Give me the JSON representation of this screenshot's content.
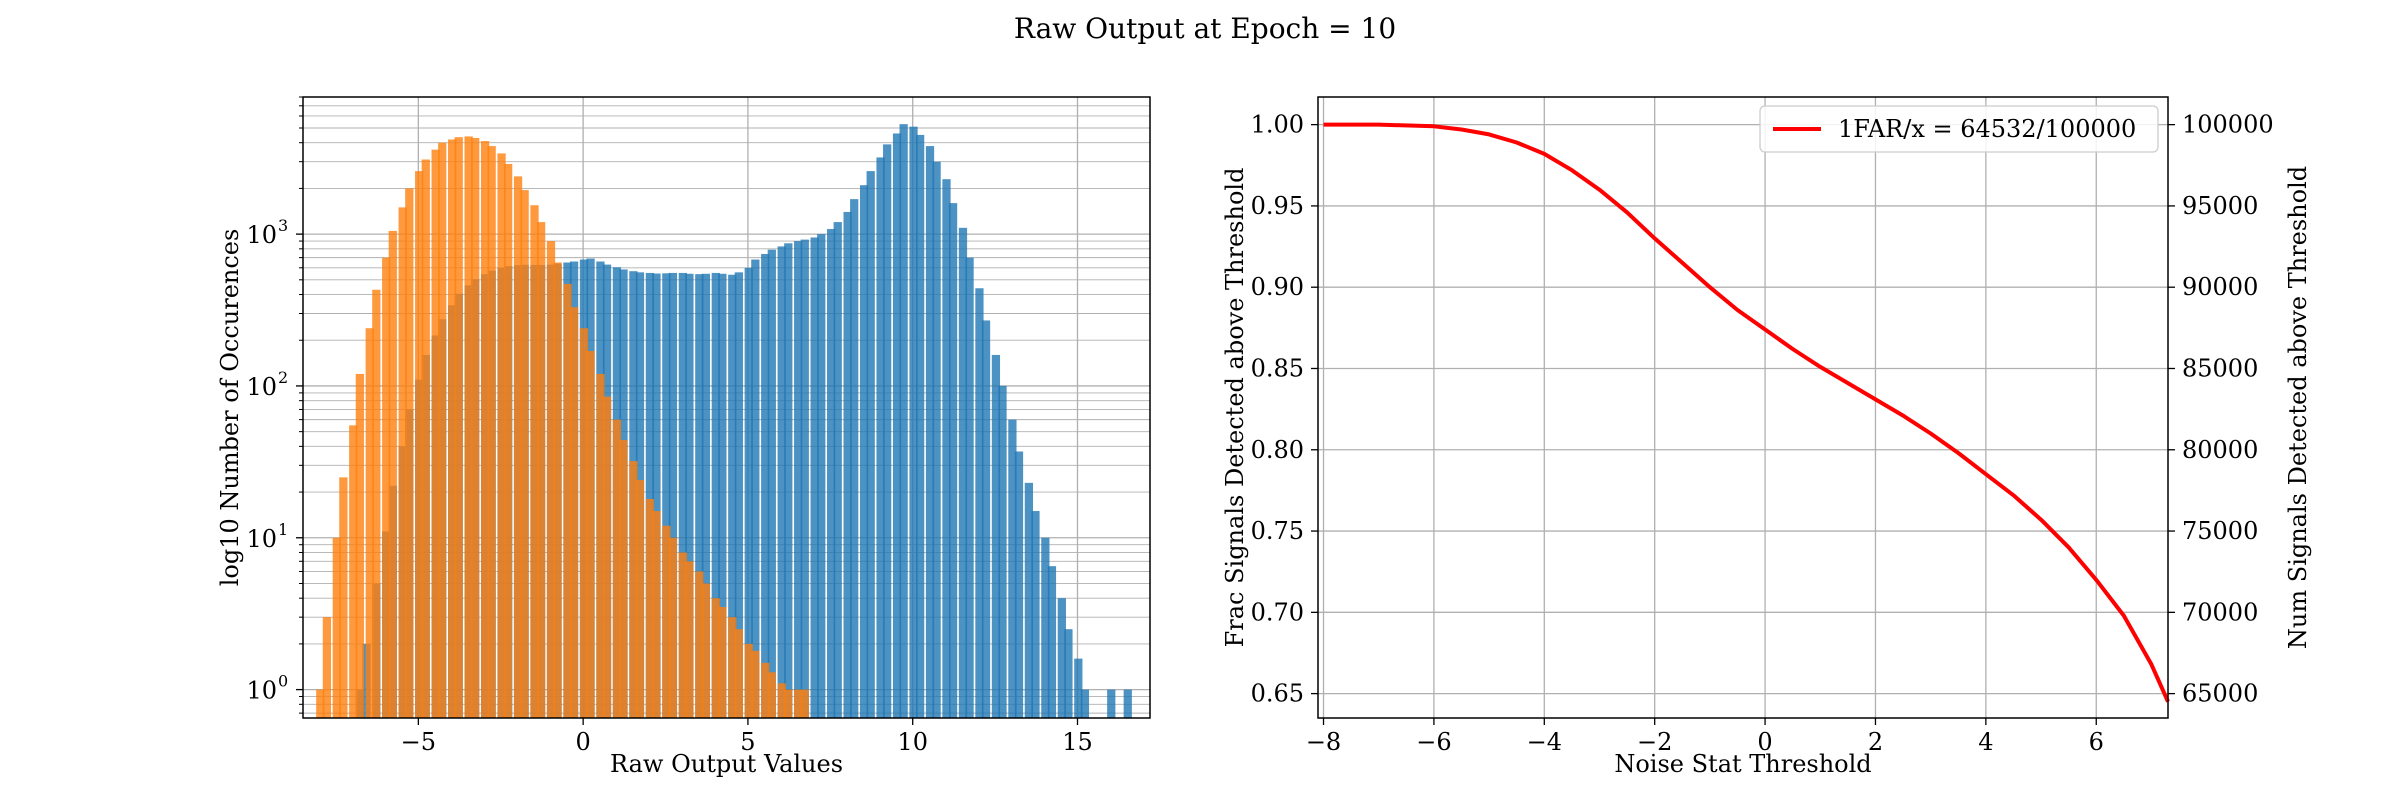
{
  "figure": {
    "title": "Raw Output at Epoch = 10"
  },
  "chart_data": [
    {
      "type": "bar",
      "subtype": "histogram",
      "xlabel": "Raw Output Values",
      "ylabel": "log10 Number of Occurences",
      "yscale": "log",
      "xlim": [
        -8.5,
        17.2
      ],
      "ylim": [
        0.65,
        8000
      ],
      "xticks": [
        -5,
        0,
        5,
        10,
        15
      ],
      "xtick_labels": [
        "−5",
        "0",
        "5",
        "10",
        "15"
      ],
      "yticks": [
        1,
        10,
        100,
        1000
      ],
      "ytick_labels": [
        "10",
        "10",
        "10",
        "10"
      ],
      "ytick_exponents": [
        "0",
        "1",
        "2",
        "3"
      ],
      "grid": true,
      "bin_width": 0.25,
      "series": [
        {
          "color": "#1f77b4",
          "bins": [
            [
              -6.9,
              1
            ],
            [
              -6.7,
              2
            ],
            [
              -6.4,
              5
            ],
            [
              -6.1,
              11
            ],
            [
              -5.9,
              22
            ],
            [
              -5.6,
              40
            ],
            [
              -5.4,
              70
            ],
            [
              -5.1,
              110
            ],
            [
              -4.9,
              160
            ],
            [
              -4.6,
              215
            ],
            [
              -4.4,
              275
            ],
            [
              -4.1,
              340
            ],
            [
              -3.9,
              405
            ],
            [
              -3.6,
              460
            ],
            [
              -3.4,
              505
            ],
            [
              -3.1,
              545
            ],
            [
              -2.9,
              575
            ],
            [
              -2.6,
              600
            ],
            [
              -2.4,
              615
            ],
            [
              -2.1,
              625
            ],
            [
              -1.9,
              628
            ],
            [
              -1.6,
              627
            ],
            [
              -1.4,
              626
            ],
            [
              -1.1,
              630
            ],
            [
              -0.9,
              640
            ],
            [
              -0.6,
              650
            ],
            [
              -0.4,
              660
            ],
            [
              -0.1,
              680
            ],
            [
              0.1,
              690
            ],
            [
              0.4,
              660
            ],
            [
              0.6,
              630
            ],
            [
              0.9,
              605
            ],
            [
              1.1,
              585
            ],
            [
              1.4,
              570
            ],
            [
              1.6,
              560
            ],
            [
              1.9,
              555
            ],
            [
              2.1,
              550
            ],
            [
              2.4,
              552
            ],
            [
              2.6,
              555
            ],
            [
              2.9,
              555
            ],
            [
              3.1,
              548
            ],
            [
              3.4,
              545
            ],
            [
              3.6,
              548
            ],
            [
              3.9,
              555
            ],
            [
              4.1,
              548
            ],
            [
              4.4,
              540
            ],
            [
              4.6,
              560
            ],
            [
              4.9,
              600
            ],
            [
              5.1,
              680
            ],
            [
              5.4,
              740
            ],
            [
              5.6,
              790
            ],
            [
              5.9,
              830
            ],
            [
              6.1,
              870
            ],
            [
              6.4,
              900
            ],
            [
              6.6,
              920
            ],
            [
              6.9,
              950
            ],
            [
              7.1,
              1000
            ],
            [
              7.4,
              1080
            ],
            [
              7.6,
              1200
            ],
            [
              7.9,
              1400
            ],
            [
              8.1,
              1700
            ],
            [
              8.4,
              2100
            ],
            [
              8.6,
              2600
            ],
            [
              8.9,
              3200
            ],
            [
              9.1,
              3900
            ],
            [
              9.4,
              4600
            ],
            [
              9.6,
              5300
            ],
            [
              9.9,
              5100
            ],
            [
              10.1,
              4500
            ],
            [
              10.4,
              3800
            ],
            [
              10.6,
              3000
            ],
            [
              10.9,
              2300
            ],
            [
              11.1,
              1600
            ],
            [
              11.4,
              1100
            ],
            [
              11.6,
              700
            ],
            [
              11.9,
              440
            ],
            [
              12.1,
              270
            ],
            [
              12.4,
              160
            ],
            [
              12.6,
              100
            ],
            [
              12.9,
              60
            ],
            [
              13.1,
              37
            ],
            [
              13.4,
              23
            ],
            [
              13.6,
              15
            ],
            [
              13.9,
              10
            ],
            [
              14.1,
              6.5
            ],
            [
              14.4,
              4
            ],
            [
              14.6,
              2.5
            ],
            [
              14.9,
              1.6
            ],
            [
              15.1,
              1
            ],
            [
              15.9,
              1
            ],
            [
              16.4,
              1
            ]
          ]
        },
        {
          "color": "#ff7f0e",
          "bins": [
            [
              -8.1,
              1
            ],
            [
              -7.9,
              3
            ],
            [
              -7.6,
              10
            ],
            [
              -7.4,
              25
            ],
            [
              -7.1,
              55
            ],
            [
              -6.9,
              120
            ],
            [
              -6.6,
              240
            ],
            [
              -6.4,
              430
            ],
            [
              -6.1,
              700
            ],
            [
              -5.9,
              1050
            ],
            [
              -5.6,
              1500
            ],
            [
              -5.4,
              2000
            ],
            [
              -5.1,
              2600
            ],
            [
              -4.9,
              3100
            ],
            [
              -4.6,
              3600
            ],
            [
              -4.4,
              4000
            ],
            [
              -4.1,
              4200
            ],
            [
              -3.9,
              4350
            ],
            [
              -3.6,
              4400
            ],
            [
              -3.4,
              4300
            ],
            [
              -3.1,
              4100
            ],
            [
              -2.9,
              3800
            ],
            [
              -2.6,
              3400
            ],
            [
              -2.4,
              2900
            ],
            [
              -2.1,
              2400
            ],
            [
              -1.9,
              1950
            ],
            [
              -1.6,
              1550
            ],
            [
              -1.4,
              1200
            ],
            [
              -1.1,
              900
            ],
            [
              -0.9,
              650
            ],
            [
              -0.6,
              470
            ],
            [
              -0.4,
              330
            ],
            [
              -0.1,
              240
            ],
            [
              0.1,
              170
            ],
            [
              0.4,
              120
            ],
            [
              0.6,
              85
            ],
            [
              0.9,
              60
            ],
            [
              1.1,
              44
            ],
            [
              1.4,
              32
            ],
            [
              1.6,
              24
            ],
            [
              1.9,
              18
            ],
            [
              2.1,
              15
            ],
            [
              2.4,
              12
            ],
            [
              2.6,
              10
            ],
            [
              2.9,
              8
            ],
            [
              3.1,
              7
            ],
            [
              3.4,
              6
            ],
            [
              3.6,
              5
            ],
            [
              3.9,
              4
            ],
            [
              4.1,
              3.5
            ],
            [
              4.4,
              3
            ],
            [
              4.6,
              2.5
            ],
            [
              4.9,
              2
            ],
            [
              5.1,
              1.8
            ],
            [
              5.4,
              1.5
            ],
            [
              5.6,
              1.3
            ],
            [
              5.9,
              1.1
            ],
            [
              6.1,
              1
            ],
            [
              6.4,
              1
            ],
            [
              6.6,
              1
            ]
          ]
        }
      ]
    },
    {
      "type": "line",
      "xlabel": "Noise Stat Threshold",
      "ylabel": "Frac Signals Detected above Threshold",
      "y2label": "Num Signals Detected above Threshold",
      "xlim": [
        -8.1,
        7.3
      ],
      "ylim": [
        0.635,
        1.017
      ],
      "xticks": [
        -8,
        -6,
        -4,
        -2,
        0,
        2,
        4,
        6
      ],
      "xtick_labels": [
        "−8",
        "−6",
        "−4",
        "−2",
        "0",
        "2",
        "4",
        "6"
      ],
      "yticks": [
        0.65,
        0.7,
        0.75,
        0.8,
        0.85,
        0.9,
        0.95,
        1.0
      ],
      "ytick_labels": [
        "0.65",
        "0.70",
        "0.75",
        "0.80",
        "0.85",
        "0.90",
        "0.95",
        "1.00"
      ],
      "y2ticks": [
        65000,
        70000,
        75000,
        80000,
        85000,
        90000,
        95000,
        100000
      ],
      "y2tick_labels": [
        "65000",
        "70000",
        "75000",
        "80000",
        "85000",
        "90000",
        "95000",
        "100000"
      ],
      "grid": true,
      "legend_position": "top-right",
      "series": [
        {
          "name": "1FAR/x = 64532/100000",
          "color": "#ff0000",
          "x": [
            -8,
            -7,
            -6,
            -5.5,
            -5,
            -4.5,
            -4,
            -3.5,
            -3,
            -2.5,
            -2,
            -1.5,
            -1,
            -0.5,
            0,
            0.5,
            1,
            1.5,
            2,
            2.5,
            3,
            3.5,
            4,
            4.5,
            5,
            5.5,
            6,
            6.5,
            7,
            7.3
          ],
          "y": [
            1.0,
            1.0,
            0.999,
            0.997,
            0.994,
            0.989,
            0.982,
            0.972,
            0.96,
            0.946,
            0.93,
            0.915,
            0.9,
            0.886,
            0.874,
            0.862,
            0.851,
            0.841,
            0.831,
            0.821,
            0.81,
            0.798,
            0.785,
            0.772,
            0.757,
            0.74,
            0.72,
            0.698,
            0.668,
            0.645
          ]
        }
      ]
    }
  ]
}
